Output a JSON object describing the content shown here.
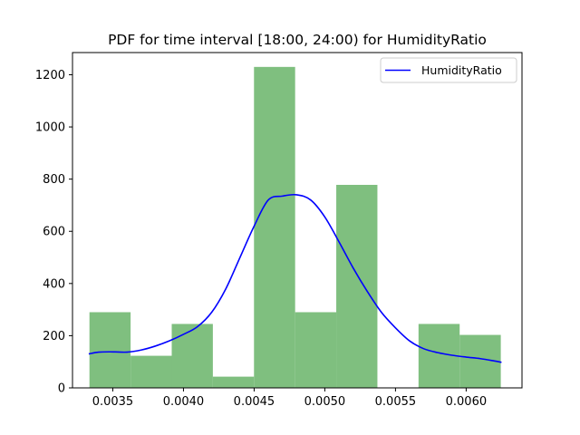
{
  "chart_data": {
    "type": "bar",
    "title": "PDF for time interval [18:00, 24:00) for HumidityRatio",
    "xlabel": "",
    "ylabel": "",
    "xlim": [
      0.003215,
      0.006395
    ],
    "ylim": [
      0,
      1285
    ],
    "grid": false,
    "legend_position": "top-right",
    "xticks": [
      0.0035,
      0.004,
      0.0045,
      0.005,
      0.0055,
      0.006
    ],
    "xtick_labels": [
      "0.0035",
      "0.0040",
      "0.0045",
      "0.0050",
      "0.0055",
      "0.0060"
    ],
    "yticks": [
      0,
      200,
      400,
      600,
      800,
      1000,
      1200
    ],
    "ytick_labels": [
      "0",
      "200",
      "400",
      "600",
      "800",
      "1000",
      "1200"
    ],
    "histogram": {
      "color": "#7fbf7f",
      "bin_edges": [
        0.003335,
        0.003626,
        0.003917,
        0.004208,
        0.004499,
        0.00479,
        0.005081,
        0.005372,
        0.005663,
        0.005954,
        0.006245
      ],
      "values": [
        290,
        123,
        245,
        43,
        1230,
        290,
        778,
        0,
        245,
        203
      ]
    },
    "series": [
      {
        "name": "HumidityRatio",
        "color": "#0000ff",
        "type": "line",
        "x": [
          0.00333,
          0.0034,
          0.0035,
          0.0036,
          0.0037,
          0.0038,
          0.0039,
          0.004,
          0.0041,
          0.0042,
          0.0043,
          0.0044,
          0.0045,
          0.0046,
          0.0047,
          0.0048,
          0.0049,
          0.005,
          0.0051,
          0.0052,
          0.0053,
          0.0054,
          0.0055,
          0.0056,
          0.0057,
          0.0058,
          0.0059,
          0.006,
          0.0061,
          0.0062,
          0.00625
        ],
        "values": [
          130,
          137,
          138,
          137,
          145,
          160,
          180,
          205,
          235,
          290,
          380,
          500,
          620,
          720,
          735,
          740,
          720,
          655,
          560,
          460,
          370,
          290,
          230,
          180,
          150,
          135,
          125,
          118,
          112,
          103,
          98
        ]
      }
    ]
  }
}
